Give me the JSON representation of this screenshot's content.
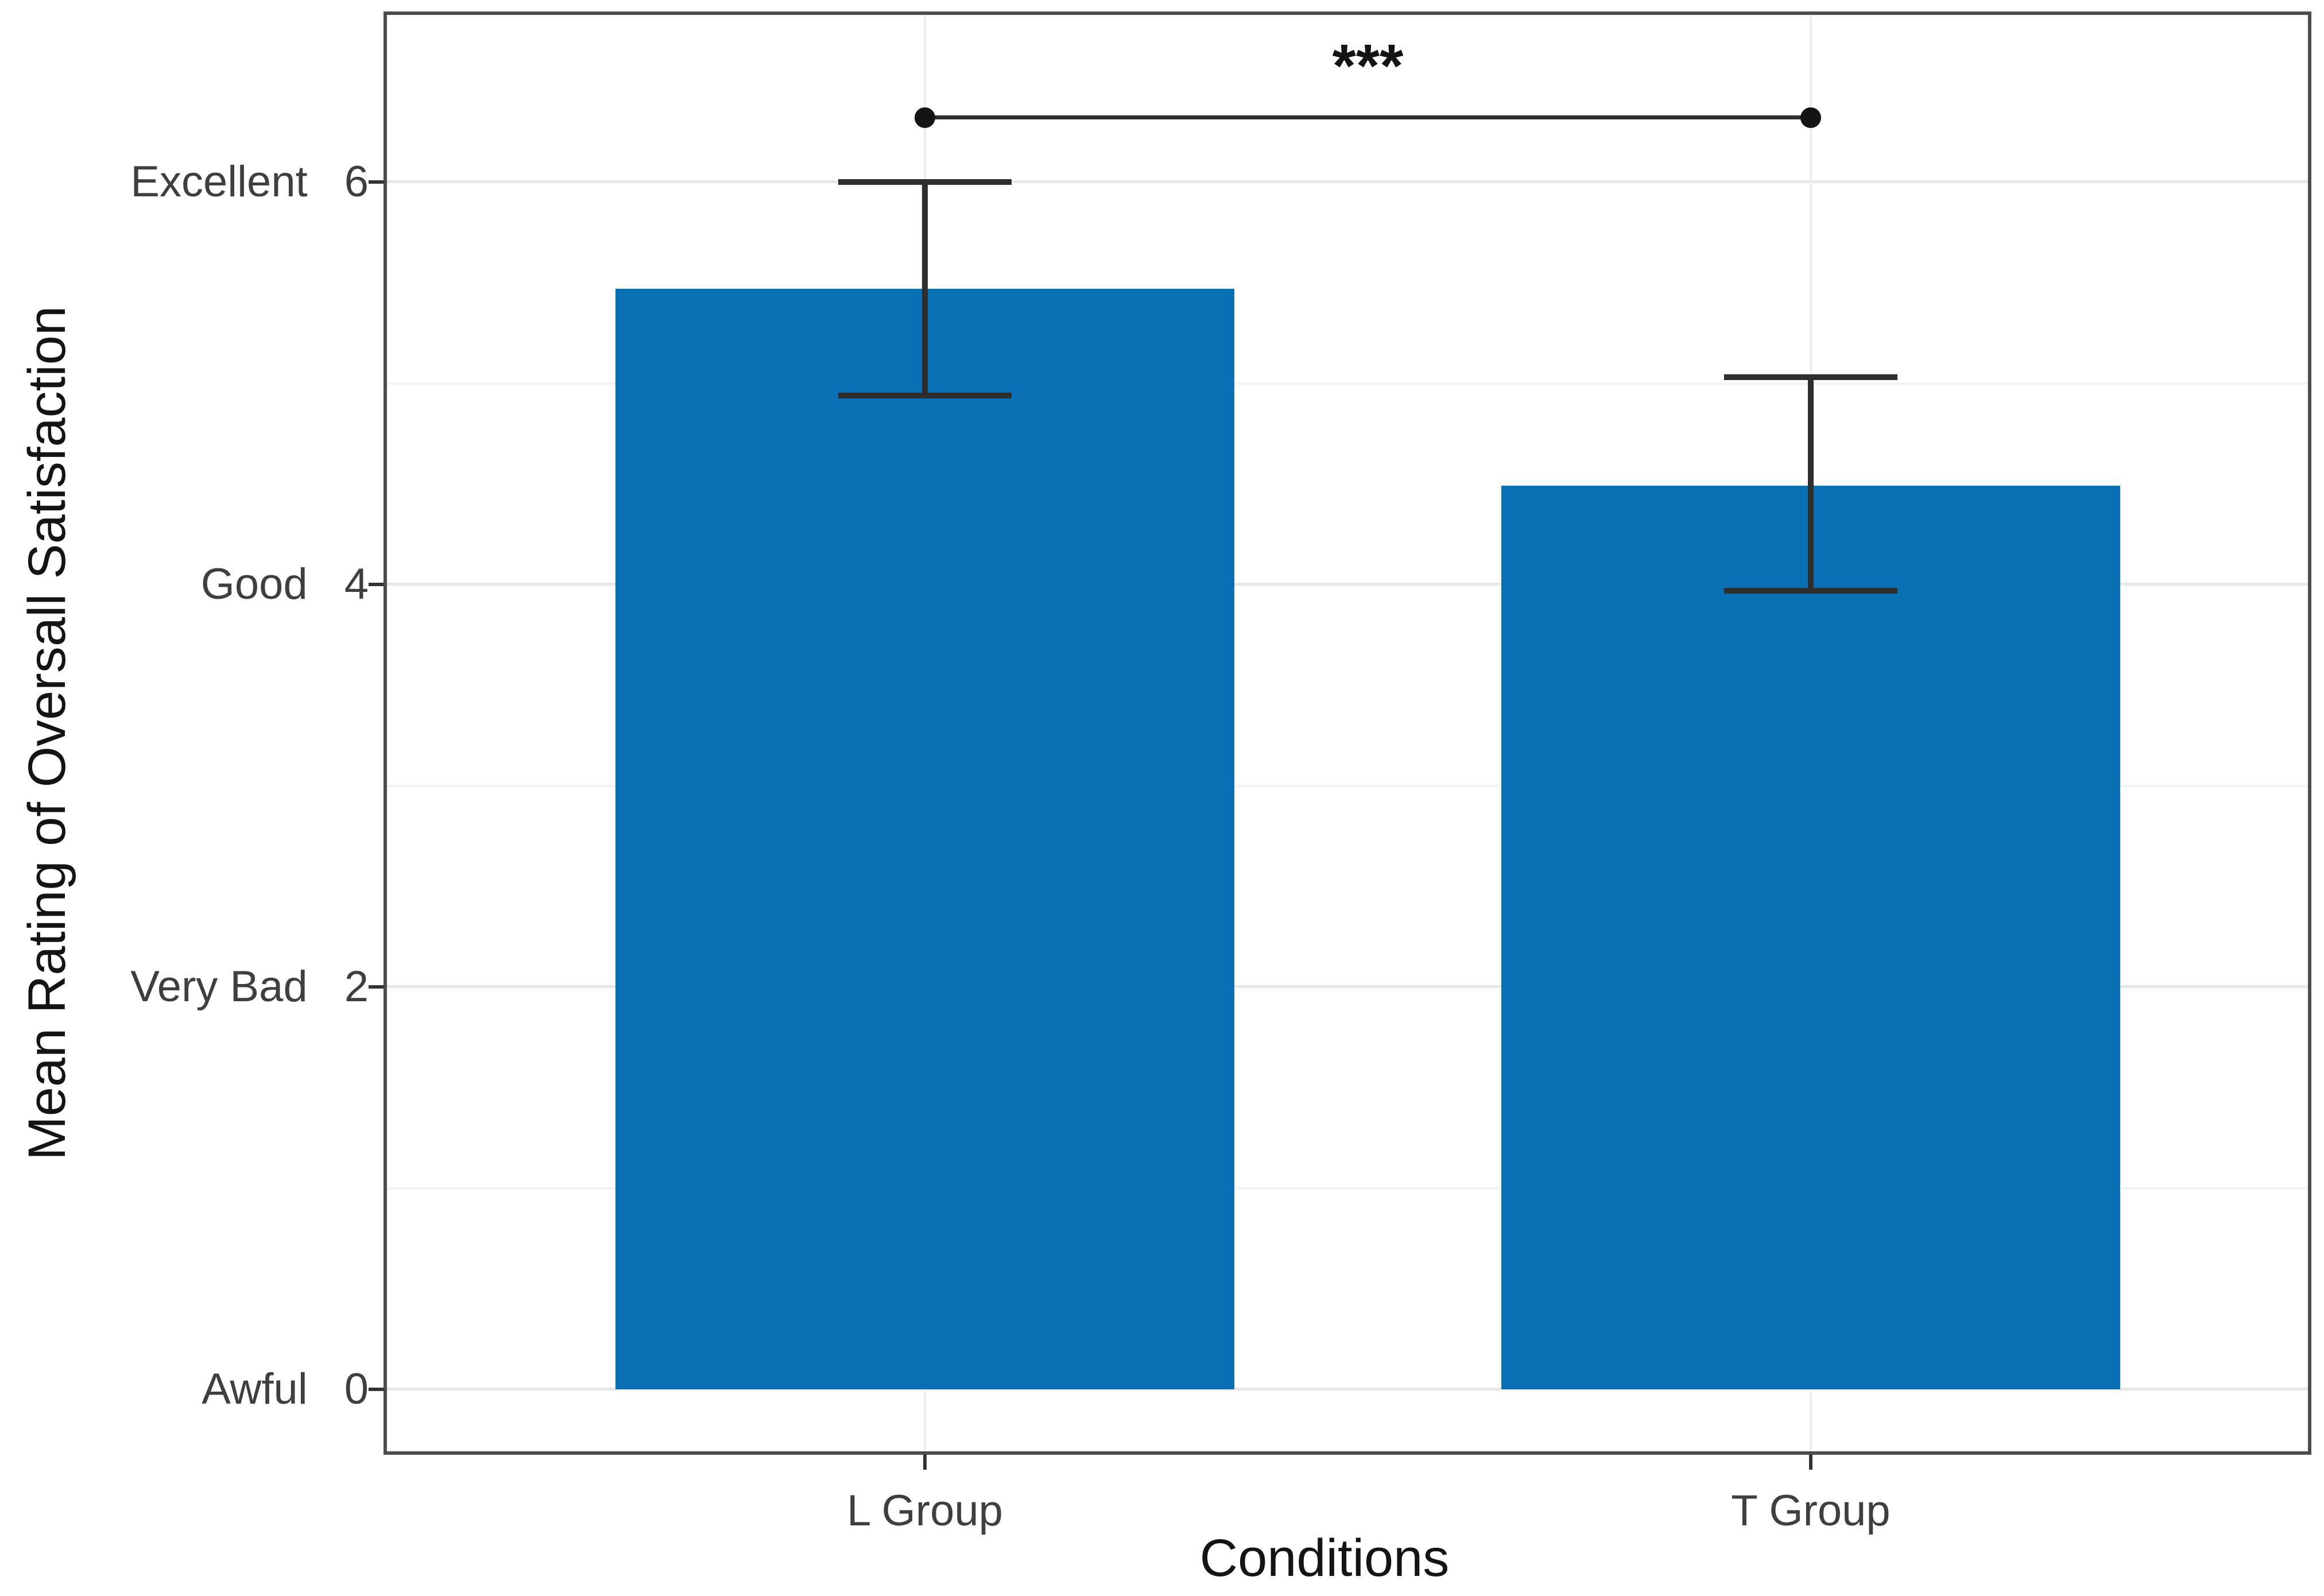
{
  "chart_data": {
    "type": "bar",
    "categories": [
      "L Group",
      "T Group"
    ],
    "values": [
      5.47,
      4.49
    ],
    "error_upper": [
      6.0,
      5.03
    ],
    "error_lower": [
      4.94,
      3.97
    ],
    "title": "",
    "xlabel": "Conditions",
    "ylabel": "Mean Rating of Oversall Satisfaction",
    "ylim": [
      -0.31,
      6.85
    ],
    "yticks": [
      {
        "value": 6,
        "label": "Excellent",
        "number": "6"
      },
      {
        "value": 4,
        "label": "Good",
        "number": "4"
      },
      {
        "value": 2,
        "label": "Very Bad",
        "number": "2"
      },
      {
        "value": 0,
        "label": "Awful",
        "number": "0"
      }
    ],
    "minor_gridline_values": [
      5,
      3,
      1
    ],
    "grid": true,
    "legend": false,
    "bar_color": "#0a70b4",
    "significance": {
      "label": "***",
      "between": [
        "L Group",
        "T Group"
      ]
    }
  }
}
